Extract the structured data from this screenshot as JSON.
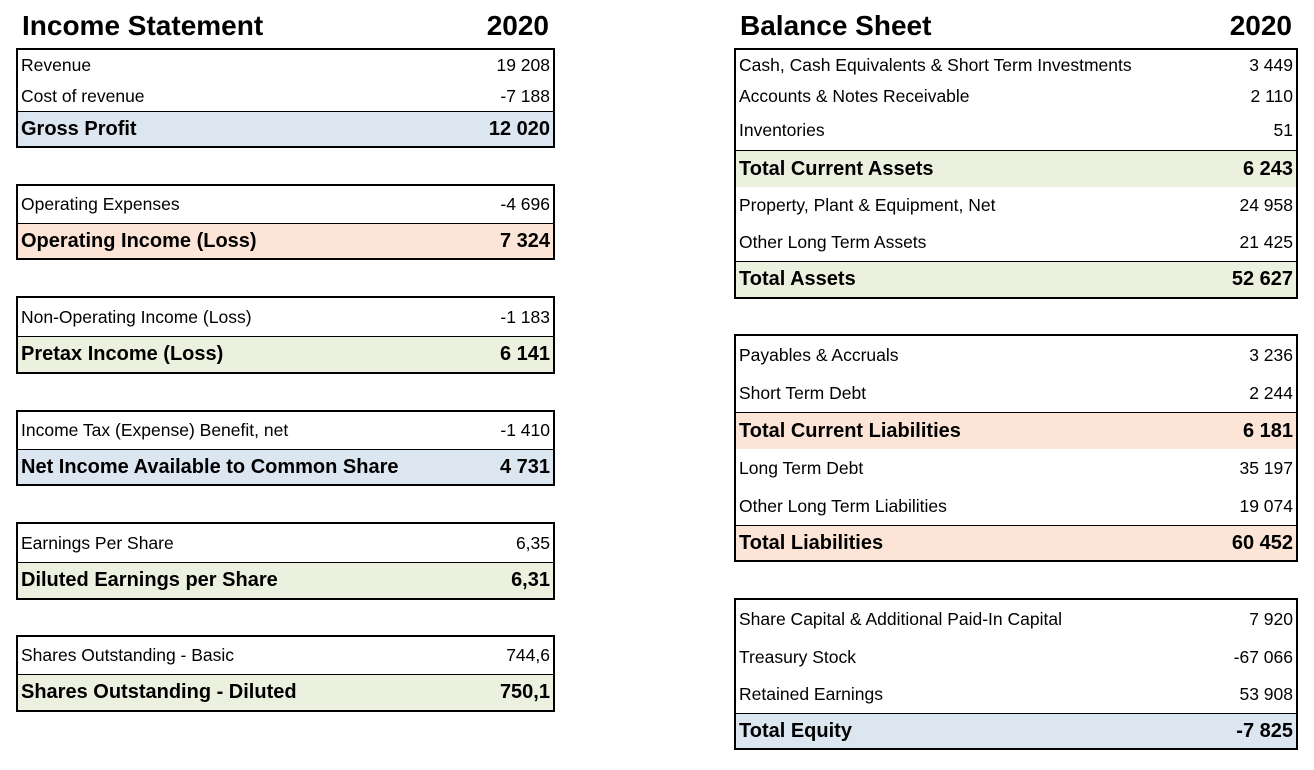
{
  "income_statement": {
    "title": "Income Statement",
    "year": "2020",
    "groups": [
      {
        "rows": [
          {
            "label": "Revenue",
            "value": "19 208"
          },
          {
            "label": "Cost of revenue",
            "value": "-7 188"
          },
          {
            "label": "Gross Profit",
            "value": "12 020",
            "fill": "#dce6f1"
          }
        ]
      },
      {
        "rows": [
          {
            "label": "Operating Expenses",
            "value": "-4 696"
          },
          {
            "label": "Operating Income (Loss)",
            "value": "7 324",
            "fill": "#fce4d6"
          }
        ]
      },
      {
        "rows": [
          {
            "label": "Non-Operating Income (Loss)",
            "value": "-1 183"
          },
          {
            "label": "Pretax Income (Loss)",
            "value": "6 141",
            "fill": "#ebf1de"
          }
        ]
      },
      {
        "rows": [
          {
            "label": "Income Tax (Expense) Benefit, net",
            "value": "-1 410"
          },
          {
            "label": "Net Income Available to Common Share",
            "value": "4 731",
            "fill": "#dce6f1"
          }
        ]
      },
      {
        "rows": [
          {
            "label": "Earnings Per Share",
            "value": "6,35"
          },
          {
            "label": "Diluted Earnings per Share",
            "value": "6,31",
            "fill": "#ebf1de"
          }
        ]
      },
      {
        "rows": [
          {
            "label": "Shares Outstanding - Basic",
            "value": "744,6"
          },
          {
            "label": "Shares Outstanding - Diluted",
            "value": "750,1",
            "fill": "#ebf1de"
          }
        ]
      }
    ]
  },
  "balance_sheet": {
    "title": "Balance Sheet",
    "year": "2020",
    "groups": [
      {
        "rows": [
          {
            "label": "Cash, Cash Equivalents & Short Term Investments",
            "value": "3 449"
          },
          {
            "label": "Accounts & Notes Receivable",
            "value": "2 110"
          },
          {
            "label": "Inventories",
            "value": "51"
          },
          {
            "label": "Total Current Assets",
            "value": "6 243",
            "fill": "#ebf1de"
          },
          {
            "label": "Property, Plant & Equipment, Net",
            "value": "24 958"
          },
          {
            "label": "Other Long Term Assets",
            "value": "21 425"
          },
          {
            "label": "Total Assets",
            "value": "52 627",
            "fill": "#ebf1de"
          }
        ]
      },
      {
        "rows": [
          {
            "label": "Payables & Accruals",
            "value": "3 236"
          },
          {
            "label": "Short Term Debt",
            "value": "2 244"
          },
          {
            "label": "Total Current Liabilities",
            "value": "6 181",
            "fill": "#fce4d6"
          },
          {
            "label": "Long Term Debt",
            "value": "35 197"
          },
          {
            "label": "Other Long Term Liabilities",
            "value": "19 074"
          },
          {
            "label": "Total Liabilities",
            "value": "60 452",
            "fill": "#fce4d6"
          }
        ]
      },
      {
        "rows": [
          {
            "label": "Share Capital & Additional Paid-In Capital",
            "value": "7 920"
          },
          {
            "label": "Treasury Stock",
            "value": "-67 066"
          },
          {
            "label": "Retained Earnings",
            "value": "53 908"
          },
          {
            "label": "Total Equity",
            "value": "-7 825",
            "fill": "#dce6f1"
          }
        ]
      }
    ]
  }
}
